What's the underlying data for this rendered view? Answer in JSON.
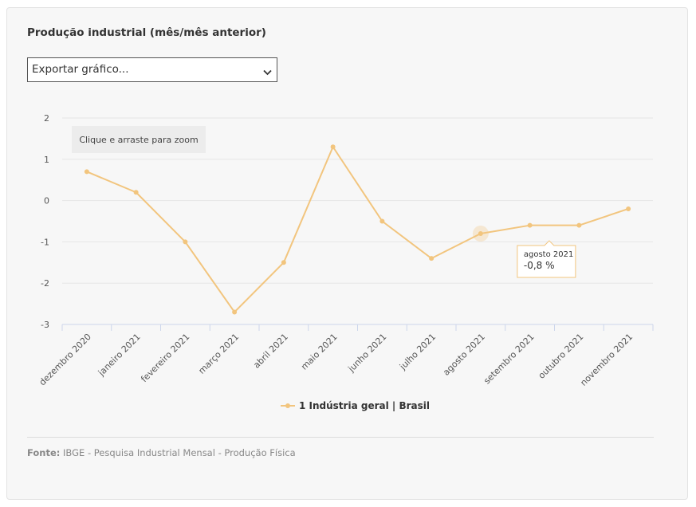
{
  "header": {
    "title": "Produção industrial (mês/mês anterior)",
    "export_label": "Exportar gráfico..."
  },
  "zoom_hint": "Clique e arraste para zoom",
  "tooltip": {
    "category": "agosto 2021",
    "value_text": "-0,8 %"
  },
  "footer": {
    "source_label": "Fonte:",
    "source_text": "IBGE - Pesquisa Industrial Mensal - Produção Física"
  },
  "colors": {
    "series": "#f2c57e",
    "grid": "#e6e6e6",
    "axis": "#ccd6eb"
  },
  "chart_data": {
    "type": "line",
    "categories": [
      "dezembro 2020",
      "janeiro 2021",
      "fevereiro 2021",
      "março 2021",
      "abril 2021",
      "maio 2021",
      "junho 2021",
      "julho 2021",
      "agosto 2021",
      "setembro 2021",
      "outubro 2021",
      "novembro 2021"
    ],
    "series": [
      {
        "name": "1 Indústria geral | Brasil",
        "values": [
          0.7,
          0.2,
          -1.0,
          -2.7,
          -1.5,
          1.3,
          -0.5,
          -1.4,
          -0.8,
          -0.6,
          -0.6,
          -0.2
        ]
      }
    ],
    "ylim": [
      -3,
      2
    ],
    "yticks": [
      2,
      1,
      0,
      -1,
      -2,
      -3
    ],
    "grid": true,
    "legend": "bottom-center",
    "highlighted_category": "agosto 2021"
  }
}
